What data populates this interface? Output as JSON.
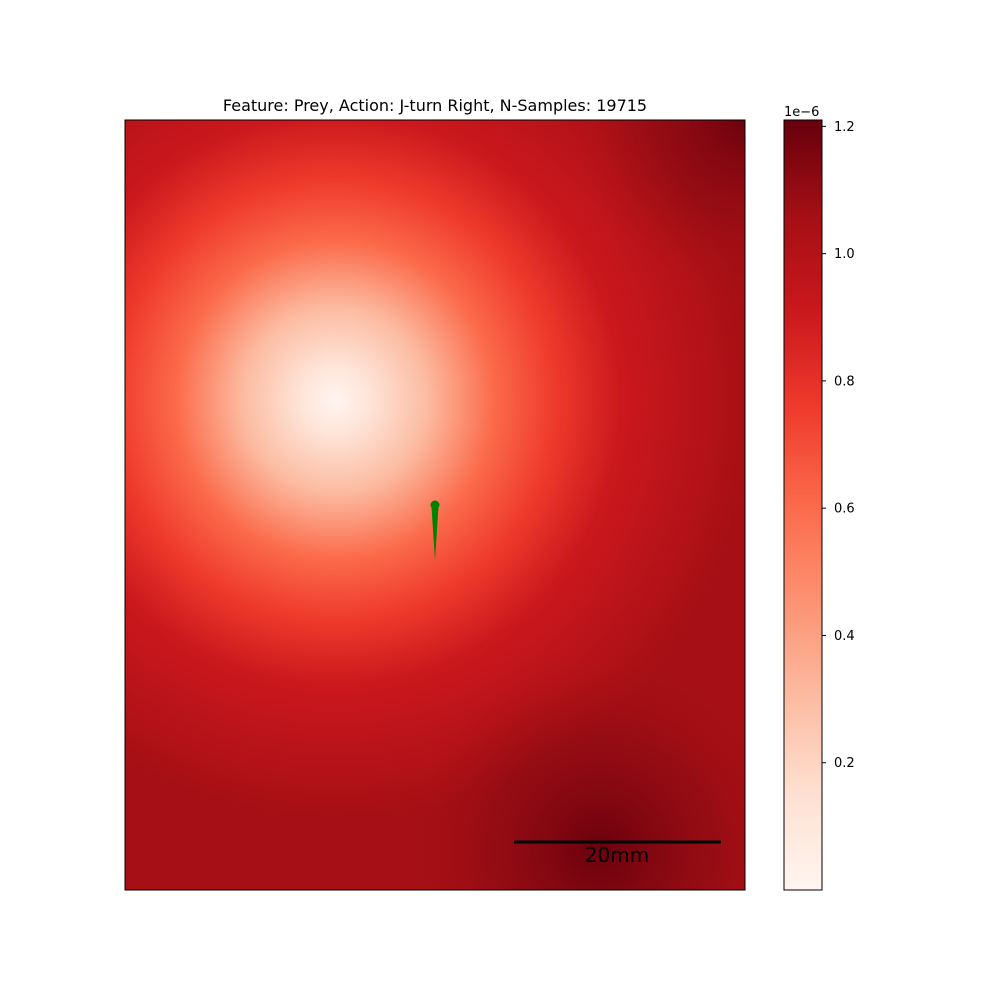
{
  "chart_data": {
    "type": "heatmap",
    "title": "Feature: Prey, Action: J-turn Right, N-Samples: 19715",
    "xlabel": "",
    "ylabel": "",
    "colormap": "Reds",
    "colorbar": {
      "offset_label": "1e−6",
      "range": [
        0.0,
        1.21
      ],
      "ticks": [
        0.2,
        0.4,
        0.6,
        0.8,
        1.0,
        1.2
      ],
      "tick_labels": [
        "0.2",
        "0.4",
        "0.6",
        "0.8",
        "1.0",
        "1.2"
      ]
    },
    "density_field": {
      "description_units": "normalized panel coordinates (0-1), value in colorbar units",
      "center_value": 0.03,
      "edge_value": 1.05,
      "falloff": "radial, low near fish, high toward lower-right and upper-right corners"
    },
    "annotations": {
      "fish_color": "#008000",
      "scale_bar_label": "20mm",
      "scale_bar_color": "#000000"
    },
    "grid": false,
    "axis_ticks": false
  }
}
